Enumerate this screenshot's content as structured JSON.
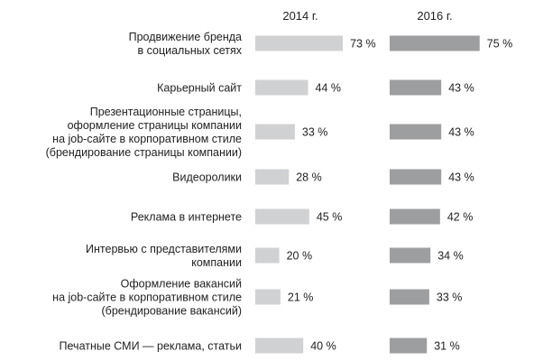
{
  "chart_data": {
    "type": "bar",
    "orientation": "horizontal",
    "categories": [
      [
        "Продвижение бренда",
        "в социальных сетях"
      ],
      [
        "Карьерный сайт"
      ],
      [
        "Презентационные страницы,",
        "оформление страницы компании",
        "на job-сайте в корпоративном стиле",
        "(брендирование страницы компании)"
      ],
      [
        "Видеоролики"
      ],
      [
        "Реклама в интернете"
      ],
      [
        "Интервью с представителями",
        "компании"
      ],
      [
        "Оформление вакансий",
        "на job-сайте в корпоративном стиле",
        "(брендирование вакансий)"
      ],
      [
        "Печатные СМИ — реклама, статьи"
      ]
    ],
    "series": [
      {
        "name": "2014 г.",
        "color": "#d0d1d3",
        "values": [
          73,
          44,
          33,
          28,
          45,
          20,
          21,
          40
        ]
      },
      {
        "name": "2016 г.",
        "color": "#9d9ea0",
        "values": [
          75,
          43,
          43,
          43,
          42,
          34,
          33,
          31
        ]
      }
    ],
    "value_suffix": " %",
    "grid": false,
    "legend": "top"
  }
}
